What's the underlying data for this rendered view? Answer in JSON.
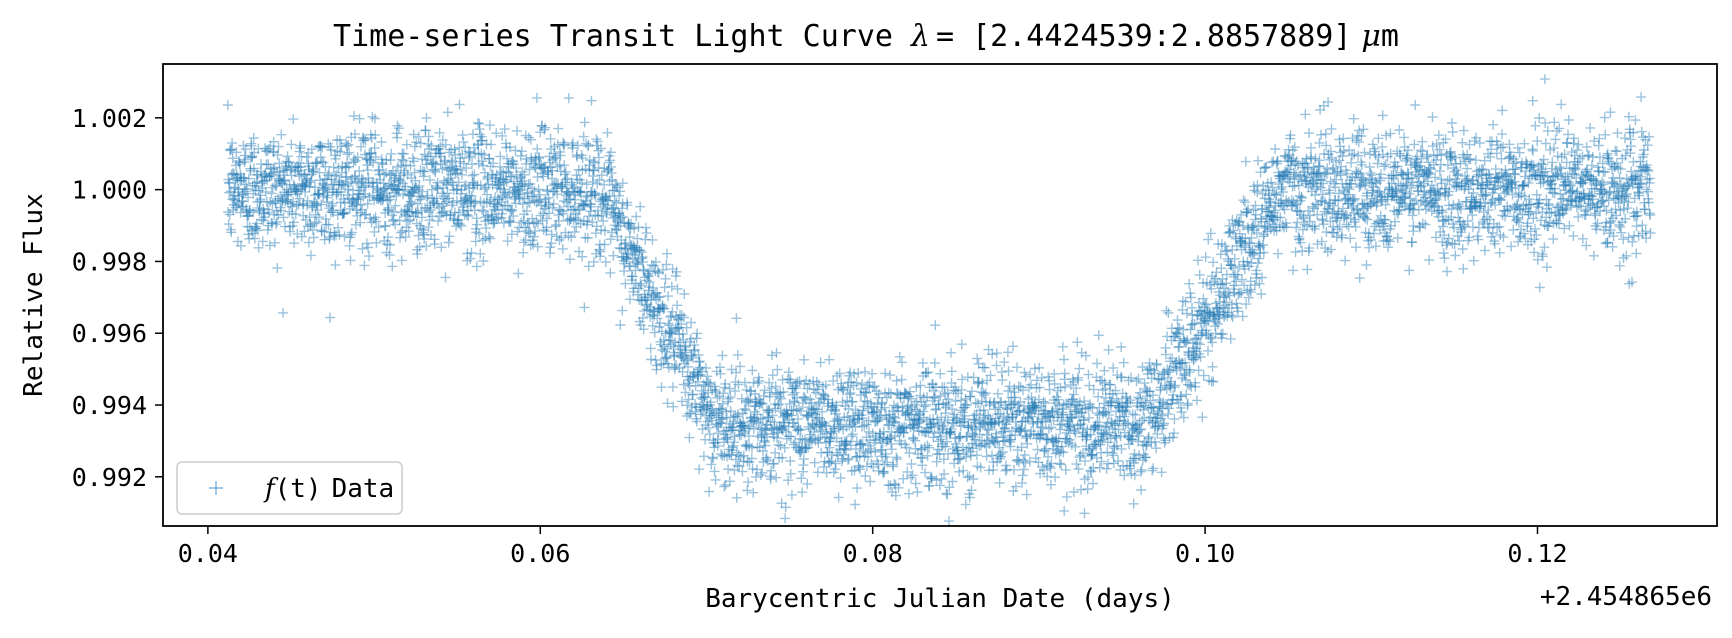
{
  "chart_data": {
    "type": "scatter",
    "title": "Time-series Transit Light Curve",
    "title_lambda": "λ",
    "title_range": "= [2.4424539:2.8857889]",
    "title_unit_mu": "μ",
    "title_unit_m": "m",
    "xlabel": "Barycentric Julian Date (days)",
    "ylabel": "Relative Flux",
    "x_offset_label": "+2.454865e6",
    "xlim": [
      0.0373,
      0.1308
    ],
    "ylim": [
      0.99063,
      1.0035
    ],
    "x_ticks": [
      0.04,
      0.06,
      0.08,
      0.1,
      0.12
    ],
    "x_tick_labels": [
      "0.04",
      "0.06",
      "0.08",
      "0.10",
      "0.12"
    ],
    "y_ticks": [
      0.992,
      0.994,
      0.996,
      0.998,
      1.0,
      1.002
    ],
    "y_tick_labels": [
      "0.992",
      "0.994",
      "0.996",
      "0.998",
      "1.000",
      "1.002"
    ],
    "grid": false,
    "legend_position": "lower-left",
    "color": "#1f77b4",
    "marker": "plus",
    "series": [
      {
        "legend_f": "f",
        "legend_t": "(t)",
        "legend_text": "Data",
        "n_points": 5000,
        "x_start": 0.0412,
        "x_end": 0.1268,
        "noise_std": 0.00085,
        "transit_model": {
          "baseline": 1.0,
          "depth": 0.0065,
          "ingress_start": 0.0635,
          "ingress_end": 0.0705,
          "egress_start": 0.0965,
          "egress_end": 0.1045
        }
      }
    ]
  }
}
